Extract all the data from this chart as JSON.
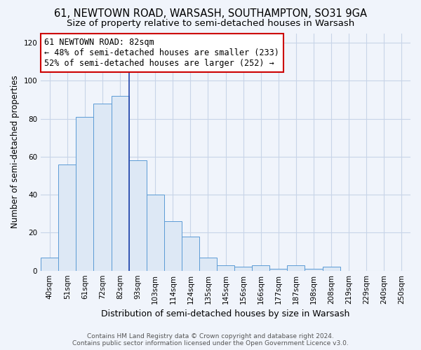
{
  "title": "61, NEWTOWN ROAD, WARSASH, SOUTHAMPTON, SO31 9GA",
  "subtitle": "Size of property relative to semi-detached houses in Warsash",
  "xlabel": "Distribution of semi-detached houses by size in Warsash",
  "ylabel": "Number of semi-detached properties",
  "bar_labels": [
    "40sqm",
    "51sqm",
    "61sqm",
    "72sqm",
    "82sqm",
    "93sqm",
    "103sqm",
    "114sqm",
    "124sqm",
    "135sqm",
    "145sqm",
    "156sqm",
    "166sqm",
    "177sqm",
    "187sqm",
    "198sqm",
    "208sqm",
    "219sqm",
    "229sqm",
    "240sqm",
    "250sqm"
  ],
  "bar_values": [
    7,
    56,
    81,
    88,
    92,
    58,
    40,
    26,
    18,
    7,
    3,
    2,
    3,
    1,
    3,
    1,
    2,
    0,
    0,
    0,
    0
  ],
  "bar_color": "#dde8f5",
  "bar_edge_color": "#5b9bd5",
  "highlight_bar_index": 4,
  "highlight_line_color": "#2244aa",
  "annotation_text": "61 NEWTOWN ROAD: 82sqm\n← 48% of semi-detached houses are smaller (233)\n52% of semi-detached houses are larger (252) →",
  "annotation_box_color": "#ffffff",
  "annotation_box_edge_color": "#cc0000",
  "ylim": [
    0,
    125
  ],
  "yticks": [
    0,
    20,
    40,
    60,
    80,
    100,
    120
  ],
  "grid_color": "#c8d4e8",
  "background_color": "#f0f4fb",
  "footer": "Contains HM Land Registry data © Crown copyright and database right 2024.\nContains public sector information licensed under the Open Government Licence v3.0.",
  "title_fontsize": 10.5,
  "subtitle_fontsize": 9.5,
  "xlabel_fontsize": 9,
  "ylabel_fontsize": 8.5,
  "tick_fontsize": 7.5,
  "annotation_fontsize": 8.5,
  "footer_fontsize": 6.5
}
